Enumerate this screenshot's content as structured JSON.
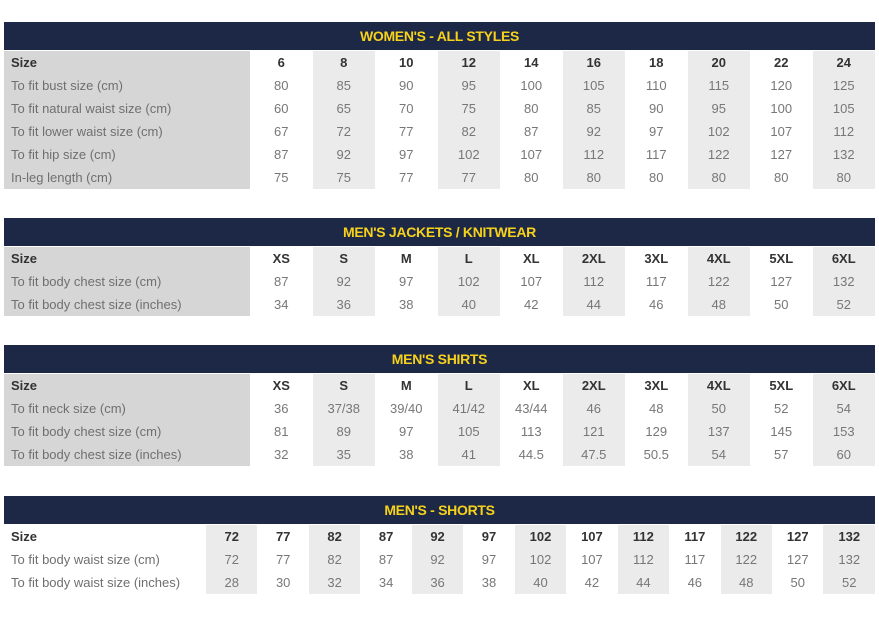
{
  "sections": [
    {
      "title": "WOMEN'S - ALL STYLES",
      "label_shaded": true,
      "shade_start": 1,
      "rows": [
        {
          "label": "Size",
          "values": [
            "6",
            "8",
            "10",
            "12",
            "14",
            "16",
            "18",
            "20",
            "22",
            "24"
          ]
        },
        {
          "label": "To fit bust size (cm)",
          "values": [
            "80",
            "85",
            "90",
            "95",
            "100",
            "105",
            "110",
            "115",
            "120",
            "125"
          ]
        },
        {
          "label": "To fit natural waist size (cm)",
          "values": [
            "60",
            "65",
            "70",
            "75",
            "80",
            "85",
            "90",
            "95",
            "100",
            "105"
          ]
        },
        {
          "label": "To fit lower waist size (cm)",
          "values": [
            "67",
            "72",
            "77",
            "82",
            "87",
            "92",
            "97",
            "102",
            "107",
            "112"
          ]
        },
        {
          "label": "To fit hip size (cm)",
          "values": [
            "87",
            "92",
            "97",
            "102",
            "107",
            "112",
            "117",
            "122",
            "127",
            "132"
          ]
        },
        {
          "label": "In-leg length (cm)",
          "values": [
            "75",
            "75",
            "77",
            "77",
            "80",
            "80",
            "80",
            "80",
            "80",
            "80"
          ]
        }
      ]
    },
    {
      "title": "MEN'S JACKETS / KNITWEAR",
      "label_shaded": true,
      "shade_start": 1,
      "rows": [
        {
          "label": "Size",
          "values": [
            "XS",
            "S",
            "M",
            "L",
            "XL",
            "2XL",
            "3XL",
            "4XL",
            "5XL",
            "6XL"
          ]
        },
        {
          "label": "To fit body chest size (cm)",
          "values": [
            "87",
            "92",
            "97",
            "102",
            "107",
            "112",
            "117",
            "122",
            "127",
            "132"
          ]
        },
        {
          "label": "To fit body chest size (inches)",
          "values": [
            "34",
            "36",
            "38",
            "40",
            "42",
            "44",
            "46",
            "48",
            "50",
            "52"
          ]
        }
      ]
    },
    {
      "title": "MEN'S SHIRTS",
      "label_shaded": true,
      "shade_start": 1,
      "rows": [
        {
          "label": "Size",
          "values": [
            "XS",
            "S",
            "M",
            "L",
            "XL",
            "2XL",
            "3XL",
            "4XL",
            "5XL",
            "6XL"
          ]
        },
        {
          "label": "To fit neck size (cm)",
          "values": [
            "36",
            "37/38",
            "39/40",
            "41/42",
            "43/44",
            "46",
            "48",
            "50",
            "52",
            "54"
          ]
        },
        {
          "label": "To fit body chest size (cm)",
          "values": [
            "81",
            "89",
            "97",
            "105",
            "113",
            "121",
            "129",
            "137",
            "145",
            "153"
          ]
        },
        {
          "label": "To fit body chest size (inches)",
          "values": [
            "32",
            "35",
            "38",
            "41",
            "44.5",
            "47.5",
            "50.5",
            "54",
            "57",
            "60"
          ]
        }
      ]
    },
    {
      "title": "MEN'S - SHORTS",
      "label_shaded": false,
      "shade_start": 0,
      "rows": [
        {
          "label": "Size",
          "values": [
            "72",
            "77",
            "82",
            "87",
            "92",
            "97",
            "102",
            "107",
            "112",
            "117",
            "122",
            "127",
            "132"
          ]
        },
        {
          "label": "To fit body waist size (cm)",
          "values": [
            "72",
            "77",
            "82",
            "87",
            "92",
            "97",
            "102",
            "107",
            "112",
            "117",
            "122",
            "127",
            "132"
          ]
        },
        {
          "label": "To fit body waist size (inches)",
          "values": [
            "28",
            "30",
            "32",
            "34",
            "36",
            "38",
            "40",
            "42",
            "44",
            "46",
            "48",
            "50",
            "52"
          ]
        }
      ]
    }
  ],
  "colors": {
    "header_bg": "#1d2846",
    "header_text": "#f7d21a",
    "label_shade": "#d6d6d6",
    "column_shade": "#ebebeb"
  }
}
